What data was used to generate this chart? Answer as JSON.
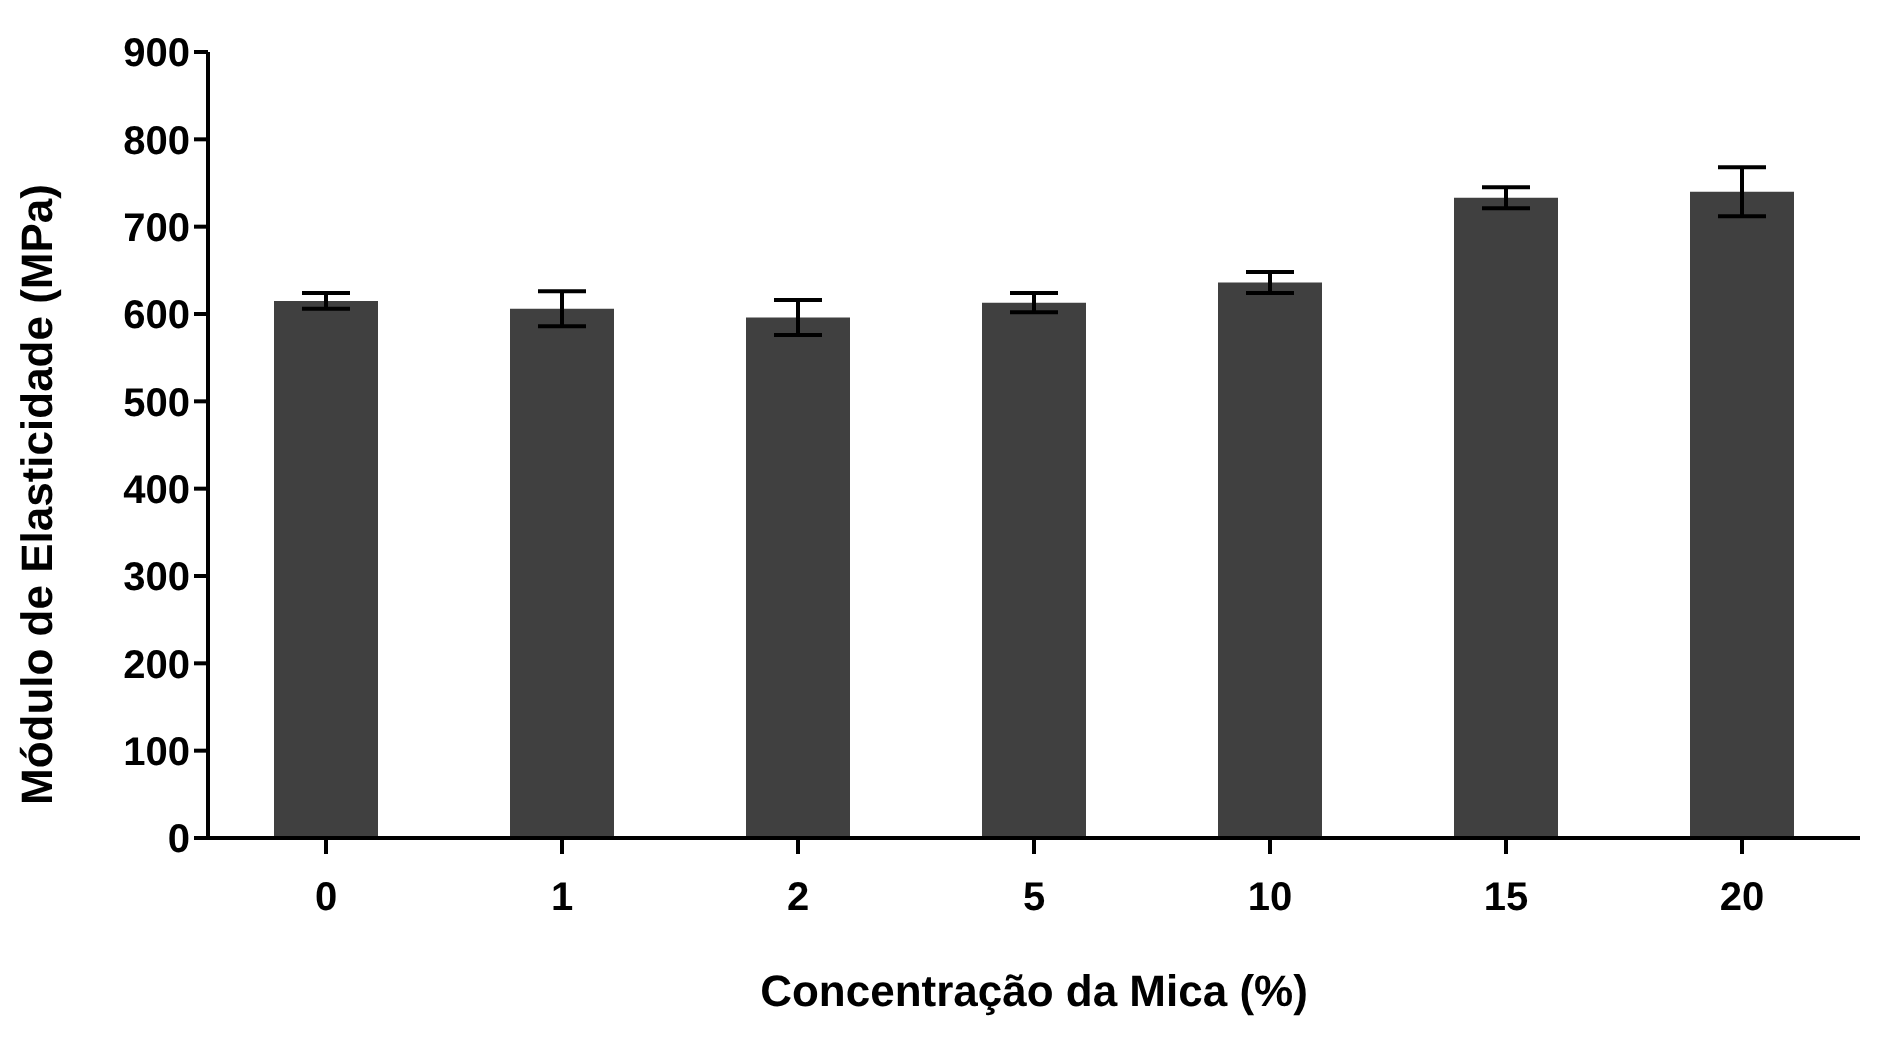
{
  "chart_data": {
    "type": "bar",
    "xlabel": "Concentração da Mica (%)",
    "ylabel": "Módulo de Elasticidade (MPa)",
    "categories": [
      "0",
      "1",
      "2",
      "5",
      "10",
      "15",
      "20"
    ],
    "values": [
      615,
      606,
      596,
      613,
      636,
      733,
      740
    ],
    "errors": [
      9,
      20,
      20,
      11,
      12,
      12,
      28
    ],
    "color": "#404040",
    "ylim": [
      0,
      900
    ],
    "yticks": [
      0,
      100,
      200,
      300,
      400,
      500,
      600,
      700,
      800,
      900
    ],
    "grid": false,
    "legend": false
  }
}
